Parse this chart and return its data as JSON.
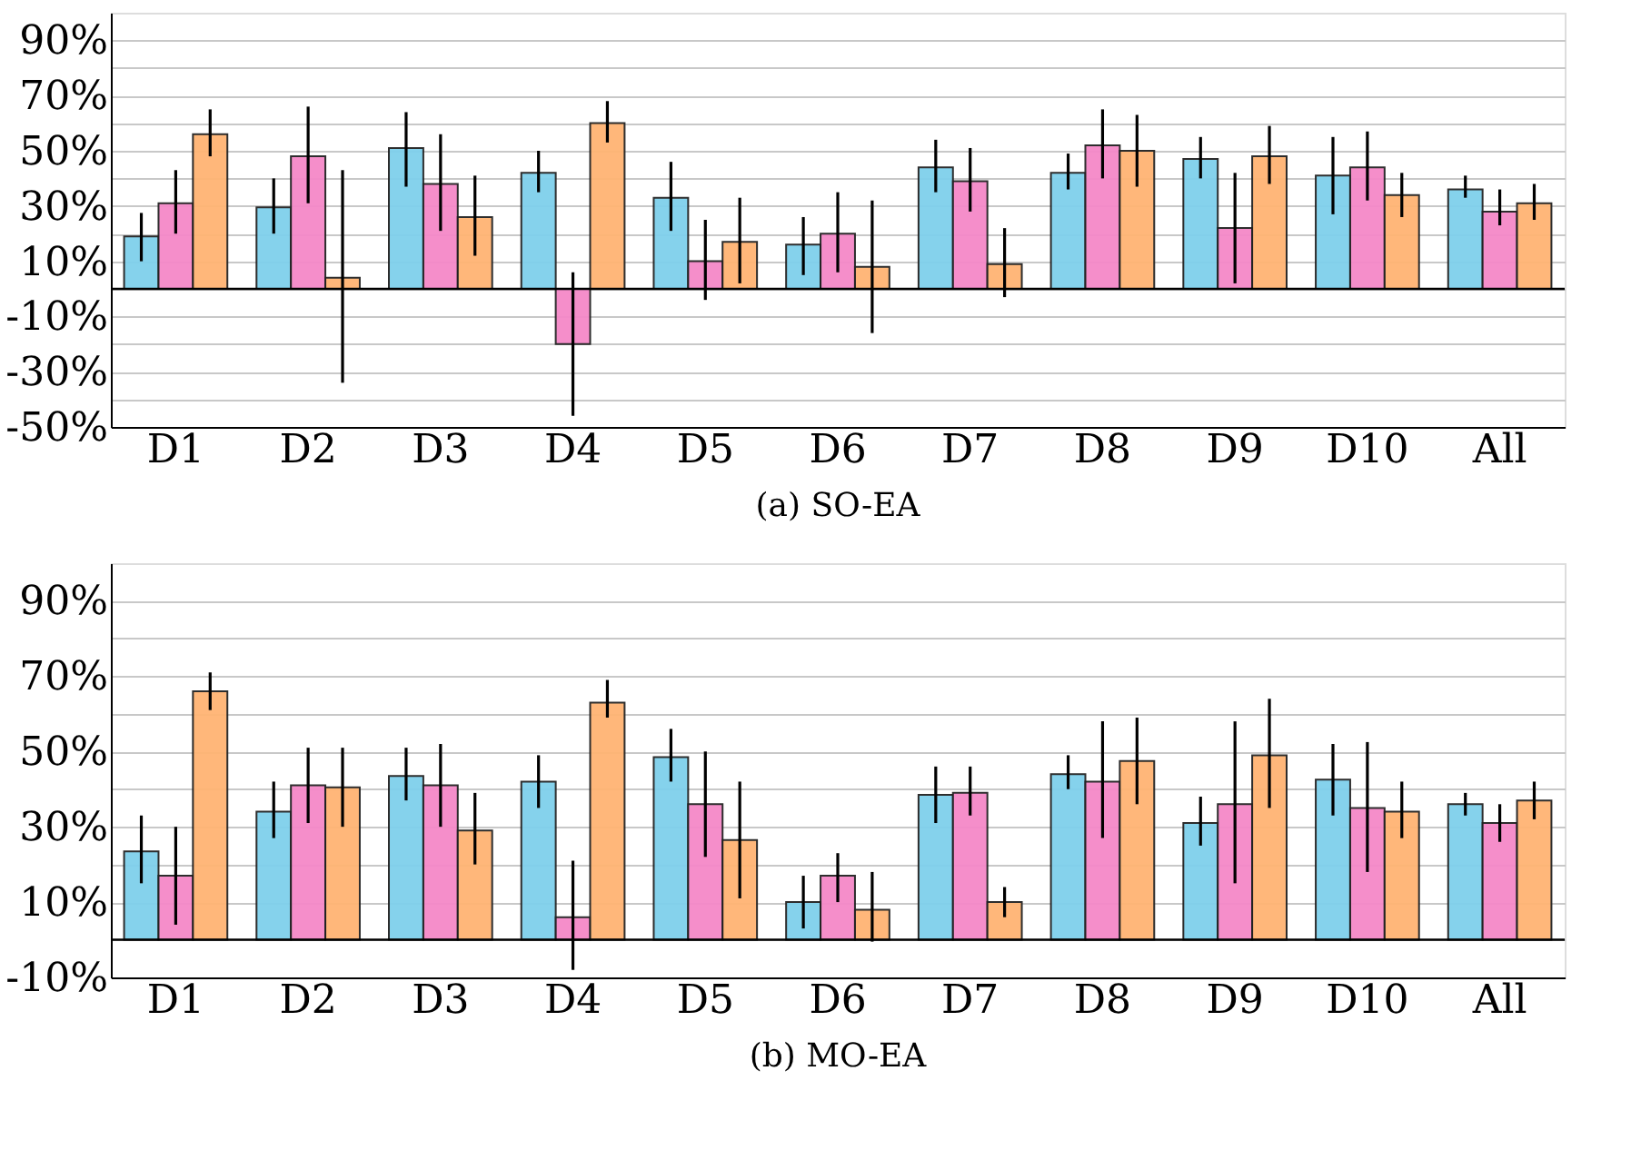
{
  "chart_data": [
    {
      "type": "bar",
      "title": "(a) SO-EA",
      "categories": [
        "D1",
        "D2",
        "D3",
        "D4",
        "D5",
        "D6",
        "D7",
        "D8",
        "D9",
        "D10",
        "All"
      ],
      "series": [
        {
          "color": "#7fd0ec",
          "values": [
            19,
            29.5,
            51,
            42,
            33,
            16,
            44,
            42,
            47,
            41,
            36
          ],
          "errors": [
            [
              10,
              27.5
            ],
            [
              20,
              40
            ],
            [
              37,
              64
            ],
            [
              35,
              50
            ],
            [
              21,
              46
            ],
            [
              5,
              26
            ],
            [
              35,
              54
            ],
            [
              36,
              49
            ],
            [
              40,
              55
            ],
            [
              27,
              55
            ],
            [
              33,
              41
            ]
          ]
        },
        {
          "color": "#f588c8",
          "values": [
            31,
            48,
            38,
            -20,
            10,
            20,
            39,
            52,
            22,
            44,
            28
          ],
          "errors": [
            [
              20,
              43
            ],
            [
              31,
              66
            ],
            [
              21,
              56
            ],
            [
              -46,
              6
            ],
            [
              -4,
              25
            ],
            [
              6,
              35
            ],
            [
              28,
              51
            ],
            [
              40,
              65
            ],
            [
              2,
              42
            ],
            [
              32,
              57
            ],
            [
              23,
              36
            ]
          ]
        },
        {
          "color": "#ffb473",
          "values": [
            56,
            4,
            26,
            60,
            17,
            8,
            9,
            50,
            48,
            34,
            31
          ],
          "errors": [
            [
              48,
              65
            ],
            [
              -34,
              43
            ],
            [
              12,
              41
            ],
            [
              53,
              68
            ],
            [
              2,
              33
            ],
            [
              -16,
              32
            ],
            [
              -3,
              22
            ],
            [
              37,
              63
            ],
            [
              38,
              59
            ],
            [
              26,
              42
            ],
            [
              25,
              38
            ]
          ]
        }
      ],
      "ylim": [
        -50,
        100
      ],
      "yticks": [
        {
          "value": -50,
          "label": "-50%"
        },
        {
          "value": -40,
          "label": null
        },
        {
          "value": -30,
          "label": "-30%"
        },
        {
          "value": -20,
          "label": null
        },
        {
          "value": -10,
          "label": "-10%"
        },
        {
          "value": 0,
          "label": null
        },
        {
          "value": 10,
          "label": "10%"
        },
        {
          "value": 20,
          "label": null
        },
        {
          "value": 30,
          "label": "30%"
        },
        {
          "value": 40,
          "label": null
        },
        {
          "value": 50,
          "label": "50%"
        },
        {
          "value": 60,
          "label": null
        },
        {
          "value": 70,
          "label": "70%"
        },
        {
          "value": 80,
          "label": null
        },
        {
          "value": 90,
          "label": "90%"
        }
      ],
      "ref_lines": [
        {
          "axis": "y",
          "value": 0,
          "color": "#000000"
        }
      ],
      "grid": "y"
    },
    {
      "type": "bar",
      "title": "(b) MO-EA",
      "categories": [
        "D1",
        "D2",
        "D3",
        "D4",
        "D5",
        "D6",
        "D7",
        "D8",
        "D9",
        "D10",
        "All"
      ],
      "series": [
        {
          "color": "#7fd0ec",
          "values": [
            23.5,
            34,
            43.5,
            42,
            48.5,
            10,
            38.5,
            44,
            31,
            42.5,
            36
          ],
          "errors": [
            [
              15,
              33
            ],
            [
              27,
              42
            ],
            [
              37,
              51
            ],
            [
              35,
              49
            ],
            [
              42,
              56
            ],
            [
              3,
              17
            ],
            [
              31,
              46
            ],
            [
              40,
              49
            ],
            [
              25,
              38
            ],
            [
              33,
              52
            ],
            [
              33,
              39
            ]
          ]
        },
        {
          "color": "#f588c8",
          "values": [
            17,
            41,
            41,
            6,
            36,
            17,
            39,
            42,
            36,
            35,
            31
          ],
          "errors": [
            [
              4,
              30
            ],
            [
              31,
              51
            ],
            [
              30,
              52
            ],
            [
              -8,
              21
            ],
            [
              22,
              50
            ],
            [
              10,
              23
            ],
            [
              33,
              46
            ],
            [
              27,
              58
            ],
            [
              15,
              58
            ],
            [
              18,
              52.5
            ],
            [
              26,
              36
            ]
          ]
        },
        {
          "color": "#ffb473",
          "values": [
            66,
            40.5,
            29,
            63,
            26.5,
            8,
            10,
            47.5,
            49,
            34,
            37
          ],
          "errors": [
            [
              61,
              71
            ],
            [
              30,
              51
            ],
            [
              20,
              39
            ],
            [
              59,
              69
            ],
            [
              11,
              42
            ],
            [
              -0.5,
              18
            ],
            [
              6,
              14
            ],
            [
              36,
              59
            ],
            [
              35,
              64
            ],
            [
              27,
              42
            ],
            [
              32,
              42
            ]
          ]
        }
      ],
      "ylim": [
        -10,
        100
      ],
      "yticks": [
        {
          "value": -10,
          "label": "-10%"
        },
        {
          "value": 0,
          "label": null
        },
        {
          "value": 10,
          "label": "10%"
        },
        {
          "value": 20,
          "label": null
        },
        {
          "value": 30,
          "label": "30%"
        },
        {
          "value": 40,
          "label": null
        },
        {
          "value": 50,
          "label": "50%"
        },
        {
          "value": 60,
          "label": null
        },
        {
          "value": 70,
          "label": "70%"
        },
        {
          "value": 80,
          "label": null
        },
        {
          "value": 90,
          "label": "90%"
        }
      ],
      "ref_lines": [
        {
          "axis": "y",
          "value": 0,
          "color": "#000000"
        }
      ],
      "grid": "y"
    }
  ]
}
